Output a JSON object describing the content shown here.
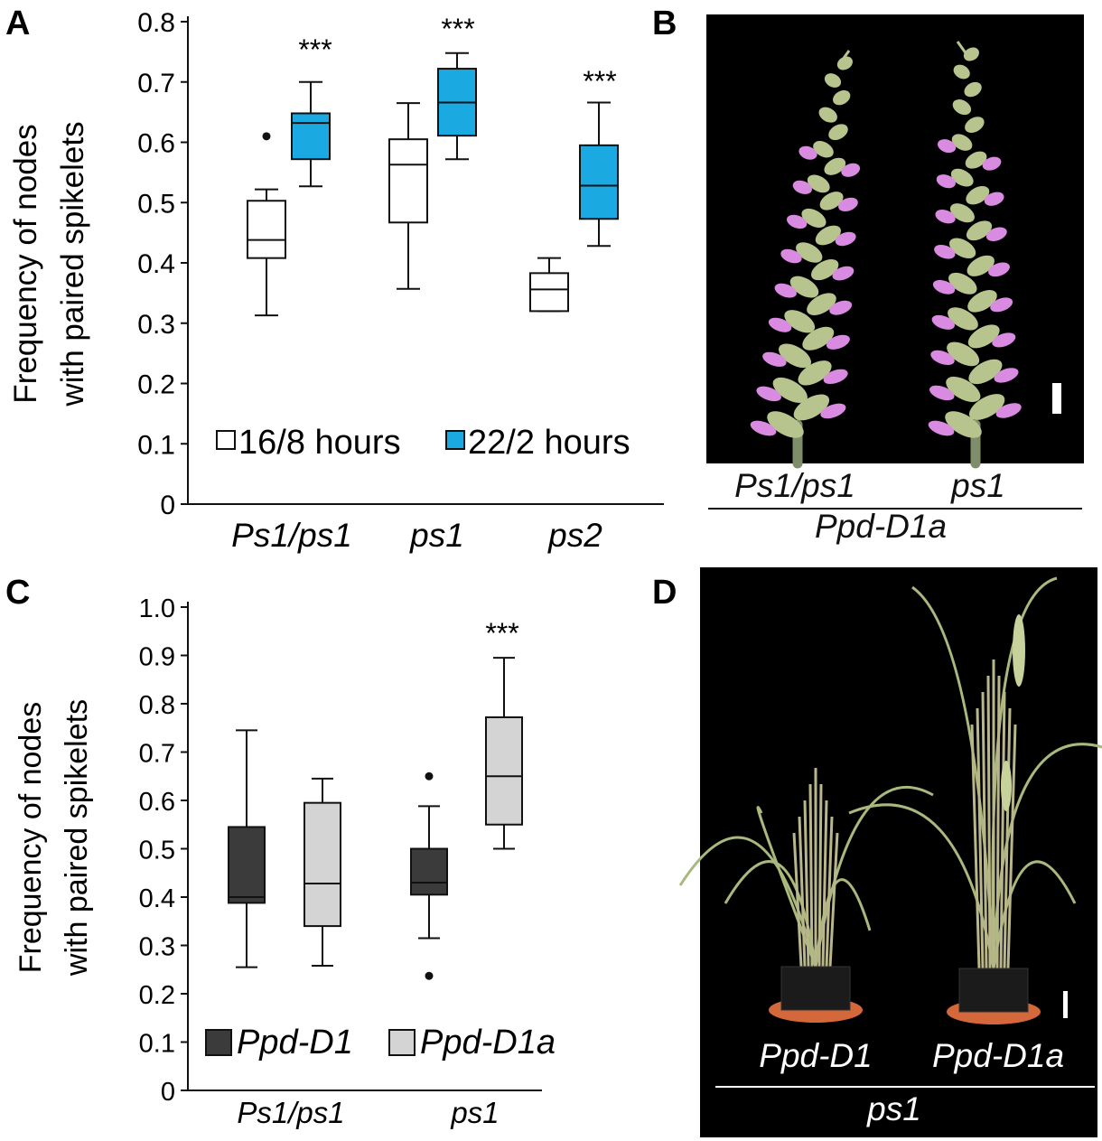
{
  "panels": {
    "A": "A",
    "B": "B",
    "C": "C",
    "D": "D"
  },
  "colors": {
    "white_box": "#ffffff",
    "blue_box": "#1aa9e1",
    "dark_box": "#3b3b3b",
    "light_box": "#d4d4d4",
    "photo_bg": "#000000",
    "spike_green": "#b7c48e",
    "spike_pink": "#d88be0",
    "pot": "#1b1b1b",
    "saucer": "#d4683b",
    "plant_green": "#a9b87c"
  },
  "chart_data": [
    {
      "panel": "A",
      "type": "box",
      "ylabel": [
        "Frequency of nodes",
        "with paired spikelets"
      ],
      "ylim": [
        0,
        0.8
      ],
      "yticks": [
        "0",
        "0.1",
        "0.2",
        "0.3",
        "0.4",
        "0.5",
        "0.6",
        "0.7",
        "0.8"
      ],
      "categories": [
        "Ps1/ps1",
        "ps1",
        "ps2"
      ],
      "legend": [
        "16/8 hours",
        "22/2 hours"
      ],
      "legend_position": "bottom",
      "series": [
        {
          "name": "16/8 hours",
          "boxes": [
            {
              "min": 0.313,
              "q1": 0.408,
              "median": 0.438,
              "q3": 0.503,
              "max": 0.522,
              "outliers": [
                0.61
              ]
            },
            {
              "min": 0.357,
              "q1": 0.467,
              "median": 0.563,
              "q3": 0.605,
              "max": 0.665,
              "outliers": []
            },
            {
              "min": 0.32,
              "q1": 0.32,
              "median": 0.356,
              "q3": 0.383,
              "max": 0.408,
              "outliers": []
            }
          ]
        },
        {
          "name": "22/2 hours",
          "boxes": [
            {
              "min": 0.527,
              "q1": 0.572,
              "median": 0.632,
              "q3": 0.648,
              "max": 0.7,
              "outliers": []
            },
            {
              "min": 0.572,
              "q1": 0.611,
              "median": 0.666,
              "q3": 0.722,
              "max": 0.748,
              "outliers": []
            },
            {
              "min": 0.428,
              "q1": 0.473,
              "median": 0.528,
              "q3": 0.595,
              "max": 0.666,
              "outliers": []
            }
          ]
        }
      ],
      "annotations": [
        "***",
        "***",
        "***"
      ]
    },
    {
      "panel": "C",
      "type": "box",
      "ylabel": [
        "Frequency of nodes",
        "with paired spikelets"
      ],
      "ylim": [
        0,
        1.0
      ],
      "yticks": [
        "0",
        "0.1",
        "0.2",
        "0.3",
        "0.4",
        "0.5",
        "0.6",
        "0.7",
        "0.8",
        "0.9",
        "1.0"
      ],
      "categories": [
        "Ps1/ps1",
        "ps1"
      ],
      "legend": [
        "Ppd-D1",
        "Ppd-D1a"
      ],
      "legend_position": "bottom",
      "series": [
        {
          "name": "Ppd-D1",
          "boxes": [
            {
              "min": 0.255,
              "q1": 0.388,
              "median": 0.4,
              "q3": 0.545,
              "max": 0.745,
              "outliers": []
            },
            {
              "min": 0.315,
              "q1": 0.405,
              "median": 0.43,
              "q3": 0.5,
              "max": 0.588,
              "outliers": [
                0.65,
                0.237
              ]
            }
          ]
        },
        {
          "name": "Ppd-D1a",
          "boxes": [
            {
              "min": 0.258,
              "q1": 0.34,
              "median": 0.428,
              "q3": 0.595,
              "max": 0.645,
              "outliers": []
            },
            {
              "min": 0.5,
              "q1": 0.55,
              "median": 0.65,
              "q3": 0.772,
              "max": 0.895,
              "outliers": []
            }
          ]
        }
      ],
      "annotations": [
        "***"
      ]
    }
  ],
  "photos": {
    "B": {
      "labels": [
        "Ps1/ps1",
        "ps1"
      ],
      "group_label": "Ppd-D1a",
      "icon": "wheat-spike-photo"
    },
    "D": {
      "labels": [
        "Ppd-D1",
        "Ppd-D1a"
      ],
      "group_label": "ps1",
      "icon": "potted-wheat-plant-photo"
    }
  }
}
